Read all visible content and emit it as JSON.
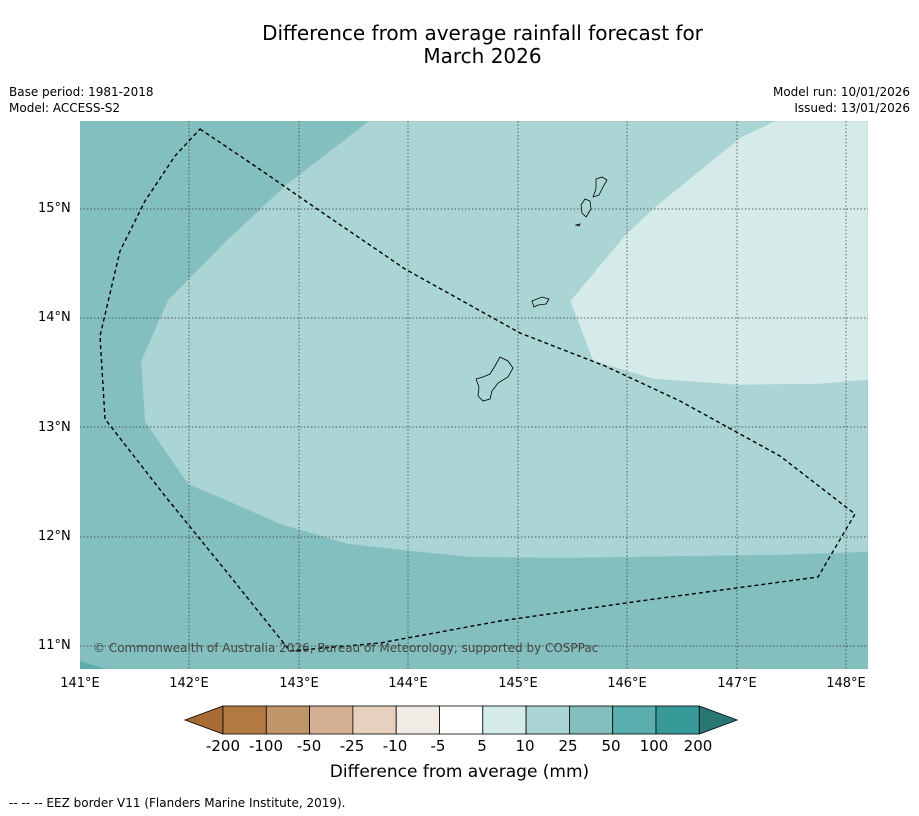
{
  "title_line1": "Difference from average rainfall forecast for",
  "title_line2": "March 2026",
  "meta_left": {
    "base_period": "Base period: 1981-2018",
    "model": "Model: ACCESS-S2"
  },
  "meta_right": {
    "model_run": "Model run: 10/01/2026",
    "issued": "Issued: 13/01/2026"
  },
  "lat_labels": [
    "15°N",
    "14°N",
    "13°N",
    "12°N",
    "11°N"
  ],
  "lon_labels": [
    "141°E",
    "142°E",
    "143°E",
    "144°E",
    "145°E",
    "146°E",
    "147°E",
    "148°E"
  ],
  "copyright": "© Commonwealth of Australia 2026, Bureau of Meteorology, supported by COSPPac",
  "colorbar": {
    "labels": [
      "-200",
      "-100",
      "-50",
      "-25",
      "-10",
      "-5",
      "5",
      "10",
      "25",
      "50",
      "100",
      "200"
    ],
    "colors": [
      "#a66c33",
      "#b27a40",
      "#c0956a",
      "#d4b093",
      "#e7d0bd",
      "#f1ebe6",
      "#ffffff",
      "#d5ebea",
      "#aad5d4",
      "#83bfbe",
      "#5baeae",
      "#379a99",
      "#297674"
    ],
    "title": "Difference from average (mm)"
  },
  "legend_text": "--  --  -- EEZ border V11 (Flanders Marine Institute, 2019)."
}
